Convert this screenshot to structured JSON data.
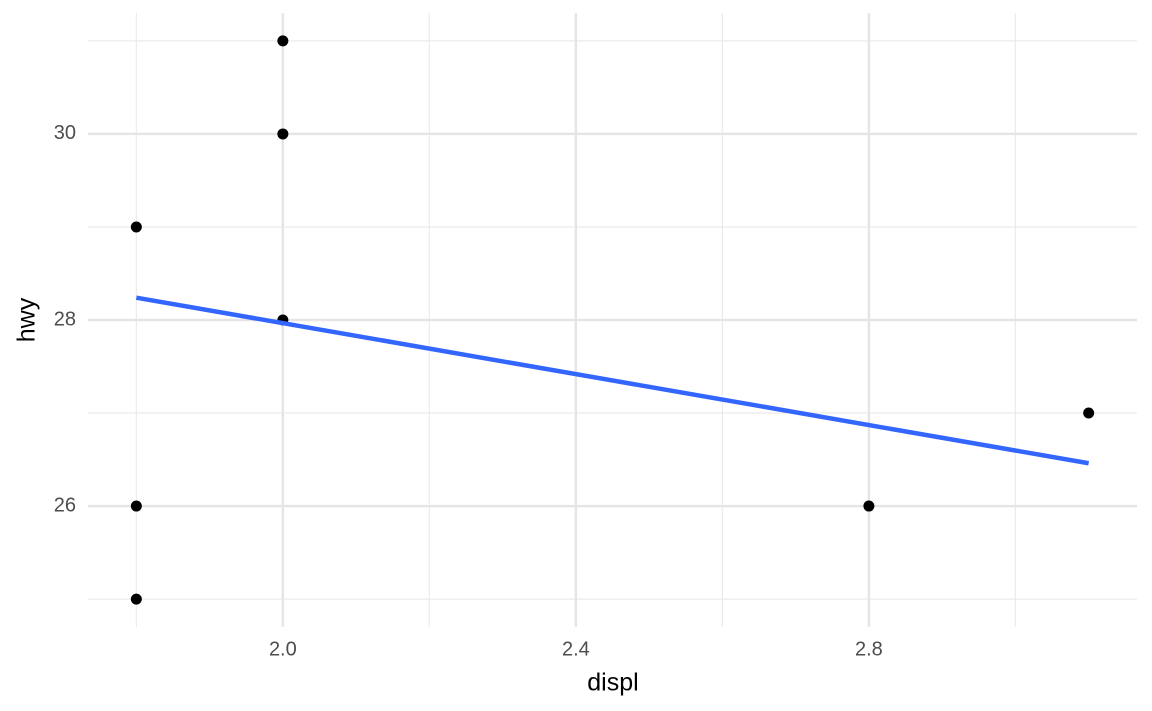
{
  "chart_data": {
    "type": "scatter",
    "x_label": "displ",
    "y_label": "hwy",
    "x": [
      1.8,
      1.8,
      1.8,
      2.0,
      2.0,
      2.0,
      2.8,
      3.1
    ],
    "values": [
      29,
      26,
      25,
      31,
      30,
      28,
      26,
      27
    ],
    "color": "#000000",
    "fit": {
      "x": [
        1.8,
        3.1
      ],
      "values": [
        28.24,
        26.46
      ],
      "color": "#3366ff"
    },
    "xlim": [
      1.734,
      3.166
    ],
    "ylim": [
      24.7,
      31.3
    ],
    "xticks": [
      {
        "value": 2.0,
        "label": "2.0"
      },
      {
        "value": 2.4,
        "label": "2.4"
      },
      {
        "value": 2.8,
        "label": "2.8"
      }
    ],
    "yticks": [
      26,
      28,
      30
    ],
    "minor_xticks": [
      1.8,
      2.2,
      2.6,
      3.0
    ],
    "minor_yticks": [
      25,
      27,
      29,
      31
    ],
    "grid": true
  }
}
